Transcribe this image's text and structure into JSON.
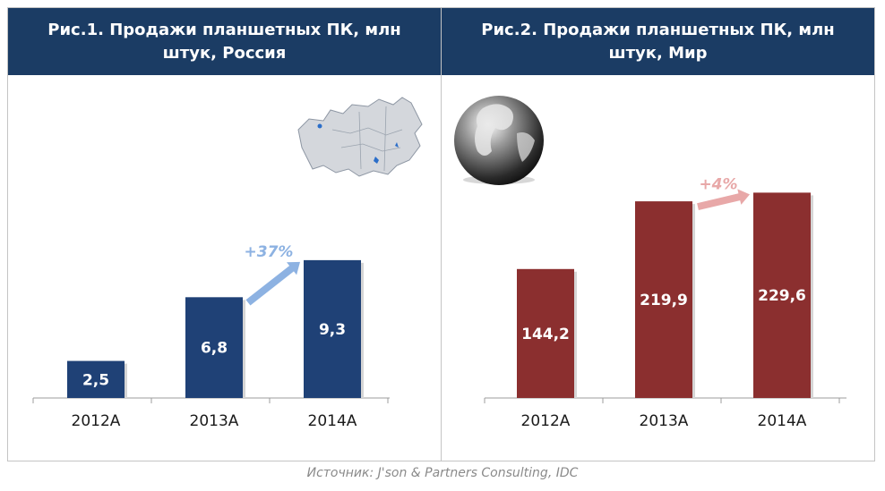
{
  "source": "Источник: J'son & Partners Consulting, IDC",
  "chart_data": [
    {
      "type": "bar",
      "title": "Рис.1. Продажи планшетных ПК, млн штук, Россия",
      "categories": [
        "2012A",
        "2013A",
        "2014A"
      ],
      "values": [
        2.5,
        6.8,
        9.3
      ],
      "value_labels": [
        "2,5",
        "6,8",
        "9,3"
      ],
      "growth_label": "+37%",
      "bar_color": "#1f4176",
      "arrow_color": "#8db2e2",
      "picture": "russia-map-icon",
      "ylim": [
        0,
        10.5
      ]
    },
    {
      "type": "bar",
      "title": "Рис.2. Продажи планшетных ПК, млн штук, Мир",
      "categories": [
        "2012A",
        "2013A",
        "2014A"
      ],
      "values": [
        144.2,
        219.9,
        229.6
      ],
      "value_labels": [
        "144,2",
        "219,9",
        "229,6"
      ],
      "growth_label": "+4%",
      "bar_color": "#8b2f2f",
      "arrow_color": "#e8a8a8",
      "picture": "globe-icon",
      "ylim": [
        0,
        266
      ]
    }
  ]
}
